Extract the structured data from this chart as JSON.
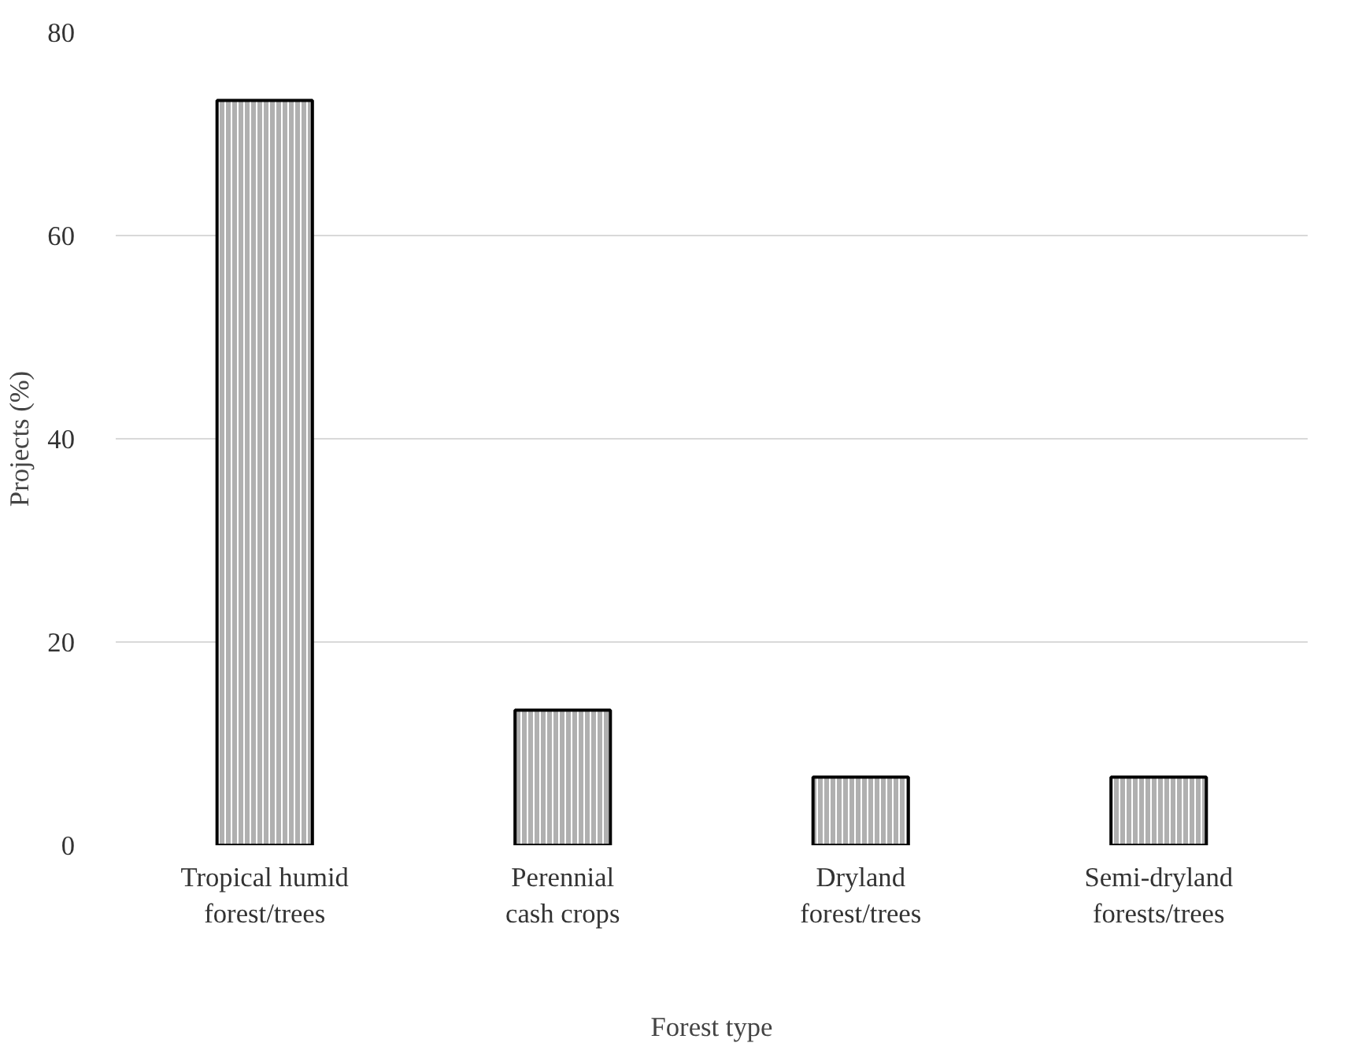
{
  "chart_data": {
    "type": "bar",
    "xlabel": "Forest type",
    "ylabel": "Projects (%)",
    "categories": [
      "Tropical humid\nforest/trees",
      "Perennial\ncash crops",
      "Dryland\nforest/trees",
      "Semi-dryland\nforests/trees"
    ],
    "values": [
      73.3,
      13.3,
      6.7,
      6.7
    ],
    "color": "#b0b0b0",
    "ylim": [
      0,
      80
    ],
    "yticks": [
      0,
      20,
      40,
      60,
      80
    ],
    "grid": "y"
  }
}
